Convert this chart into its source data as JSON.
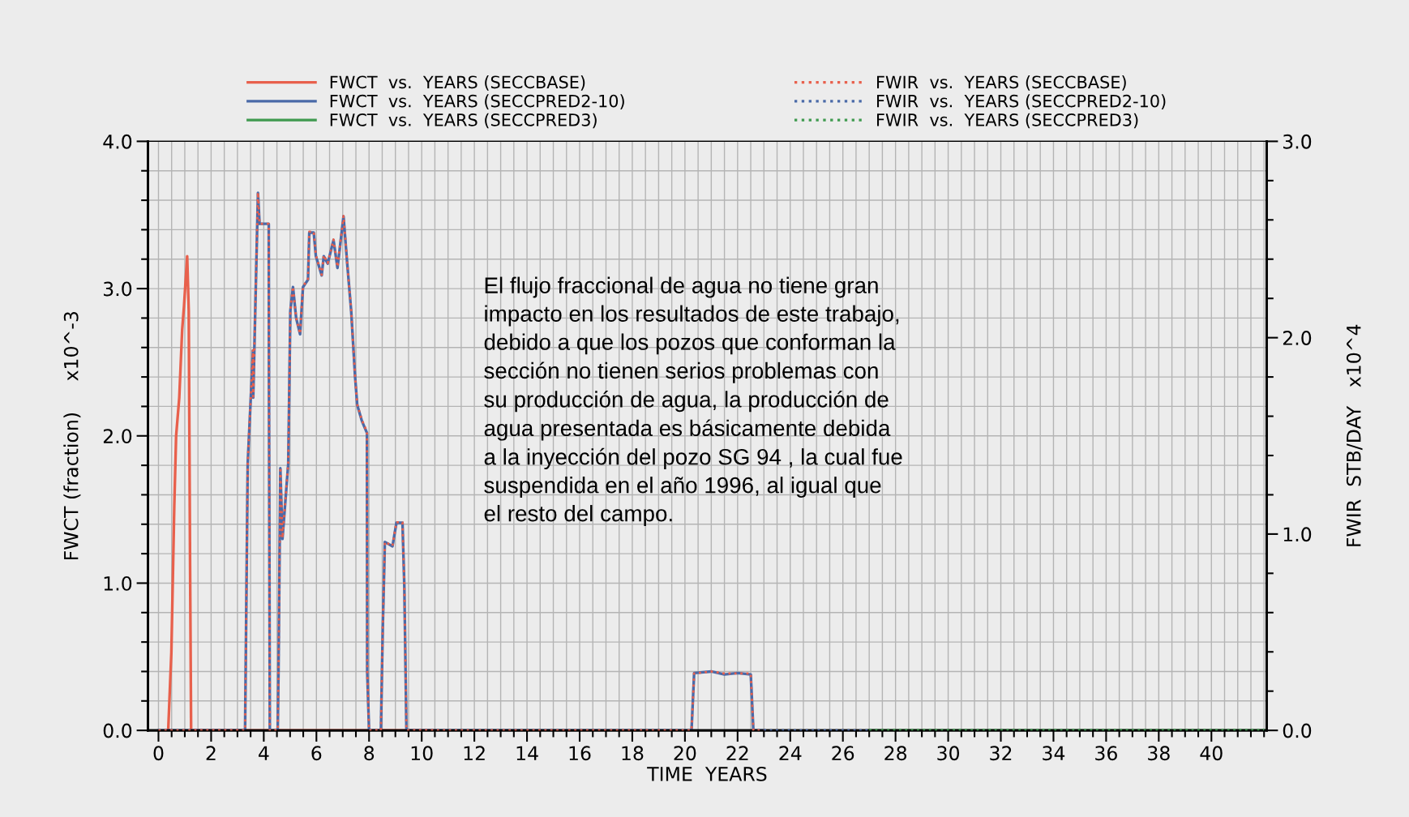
{
  "chart_data": {
    "type": "line",
    "xlabel": "TIME  YEARS",
    "ylabel": "FWCT (fraction)     x10^-3",
    "y2label": "FWIR  STB/DAY   x10^4",
    "xlim": [
      -0.4,
      42.1
    ],
    "xticks": [
      0,
      2,
      4,
      6,
      8,
      10,
      12,
      14,
      16,
      18,
      20,
      22,
      24,
      26,
      28,
      30,
      32,
      34,
      36,
      38,
      40
    ],
    "ylim": [
      0,
      4
    ],
    "yticks": [
      {
        "value": 0,
        "label": "0.0"
      },
      {
        "value": 1,
        "label": "1.0"
      },
      {
        "value": 2,
        "label": "2.0"
      },
      {
        "value": 3,
        "label": "3.0"
      },
      {
        "value": 4,
        "label": "4.0"
      }
    ],
    "y2lim": [
      0,
      3
    ],
    "y2ticks": [
      {
        "value": 0,
        "label": "0.0"
      },
      {
        "value": 1,
        "label": "1.0"
      },
      {
        "value": 2,
        "label": "2.0"
      },
      {
        "value": 3,
        "label": "3.0"
      }
    ],
    "grid": true,
    "legend": "top",
    "marker": "none",
    "series": [
      {
        "name": "FWCT  vs.  YEARS (SECCBASE)",
        "color": "#e8604c",
        "line_style": "solid",
        "x": [
          0.37,
          0.49,
          0.6,
          0.67,
          0.79,
          0.9,
          0.97,
          1.09,
          1.15,
          1.2,
          1.24,
          10.5
        ],
        "values": [
          0,
          0.53,
          1.52,
          2.0,
          2.26,
          2.72,
          2.88,
          3.22,
          2.85,
          1.14,
          0,
          0
        ]
      },
      {
        "name": "FWCT  vs.  YEARS (SECCPRED2-10)",
        "color": "#4a6aa8",
        "line_style": "solid",
        "x": [
          0,
          3.29,
          3.39,
          3.59,
          3.6,
          3.78,
          3.84,
          4.19,
          4.2,
          4.23,
          4.53,
          4.56,
          4.63,
          4.71,
          4.93,
          5.01,
          5.11,
          5.23,
          5.38,
          5.49,
          5.68,
          5.73,
          5.9,
          5.98,
          6.2,
          6.28,
          6.43,
          6.65,
          6.8,
          7.03,
          7.17,
          7.32,
          7.47,
          7.55,
          7.73,
          7.92,
          7.93,
          8.0,
          8.45,
          8.52,
          8.6,
          8.89,
          9.04,
          9.27,
          9.34,
          9.42,
          20.25,
          20.35,
          21.0,
          21.5,
          22.0,
          22.5,
          22.6,
          23.0
        ],
        "values": [
          0,
          0,
          1.81,
          2.58,
          2.26,
          3.65,
          3.44,
          3.44,
          2.24,
          0,
          0,
          0.4,
          1.78,
          1.3,
          1.81,
          2.85,
          3.01,
          2.8,
          2.69,
          3.01,
          3.06,
          3.38,
          3.38,
          3.22,
          3.09,
          3.22,
          3.17,
          3.33,
          3.14,
          3.49,
          3.17,
          2.85,
          2.4,
          2.21,
          2.1,
          2.02,
          0.4,
          0,
          0,
          0.69,
          1.28,
          1.25,
          1.41,
          1.41,
          0.98,
          0,
          0,
          0.39,
          0.4,
          0.38,
          0.39,
          0.38,
          0,
          0
        ]
      },
      {
        "name": "FWCT  vs.  YEARS (SECCPRED3)",
        "color": "#3f9a4f",
        "line_style": "solid",
        "x": [
          27.0,
          42.0
        ],
        "values": [
          0,
          0
        ]
      },
      {
        "name": "FWIR  vs.  YEARS (SECCBASE)",
        "color": "#e8604c",
        "line_style": "dotted",
        "axis": "y2",
        "x": [
          0,
          3.29,
          3.39,
          3.59,
          3.6,
          3.78,
          3.84,
          4.19,
          4.2,
          4.23,
          4.53,
          4.56,
          4.63,
          4.71,
          4.93,
          5.01,
          5.11,
          5.23,
          5.38,
          5.49,
          5.68,
          5.73,
          5.9,
          5.98,
          6.2,
          6.28,
          6.43,
          6.65,
          6.8,
          7.03,
          7.17,
          7.32,
          7.47,
          7.55,
          7.73,
          7.92,
          7.93,
          8.0,
          8.45,
          8.52,
          8.6,
          8.89,
          9.04,
          9.27,
          9.34,
          9.42,
          20.25,
          20.35,
          21.0,
          21.5,
          22.0,
          22.5,
          22.6,
          23.0
        ],
        "values": [
          0,
          0,
          1.36,
          1.94,
          1.7,
          2.74,
          2.58,
          2.58,
          1.68,
          0,
          0,
          0.3,
          1.34,
          0.98,
          1.36,
          2.14,
          2.26,
          2.1,
          2.02,
          2.26,
          2.3,
          2.54,
          2.54,
          2.42,
          2.32,
          2.42,
          2.38,
          2.5,
          2.36,
          2.62,
          2.38,
          2.14,
          1.8,
          1.66,
          1.58,
          1.52,
          0.3,
          0,
          0,
          0.52,
          0.96,
          0.94,
          1.06,
          1.06,
          0.74,
          0,
          0,
          0.29,
          0.3,
          0.29,
          0.29,
          0.29,
          0,
          0
        ]
      },
      {
        "name": "FWIR  vs.  YEARS (SECCPRED2-10)",
        "color": "#4a6aa8",
        "line_style": "dotted",
        "axis": "y2",
        "x": [
          23.0,
          27.0
        ],
        "values": [
          0,
          0
        ]
      },
      {
        "name": "FWIR  vs.  YEARS (SECCPRED3)",
        "color": "#3f9a4f",
        "line_style": "dotted",
        "axis": "y2",
        "x": [
          27.0,
          42.0
        ],
        "values": [
          0,
          0
        ]
      }
    ],
    "annotations": [
      {
        "text": "El flujo fraccional de agua no tiene gran\nimpacto en los resultados de este trabajo,\ndebido a que los pozos que conforman la\nsección no tienen serios problemas con\nsu producción de agua, la producción de\nagua presentada es básicamente debida\na la inyección del pozo SG 94 , la cual fue\nsuspendida en el año 1996, al igual que\nel resto del campo."
      }
    ]
  }
}
